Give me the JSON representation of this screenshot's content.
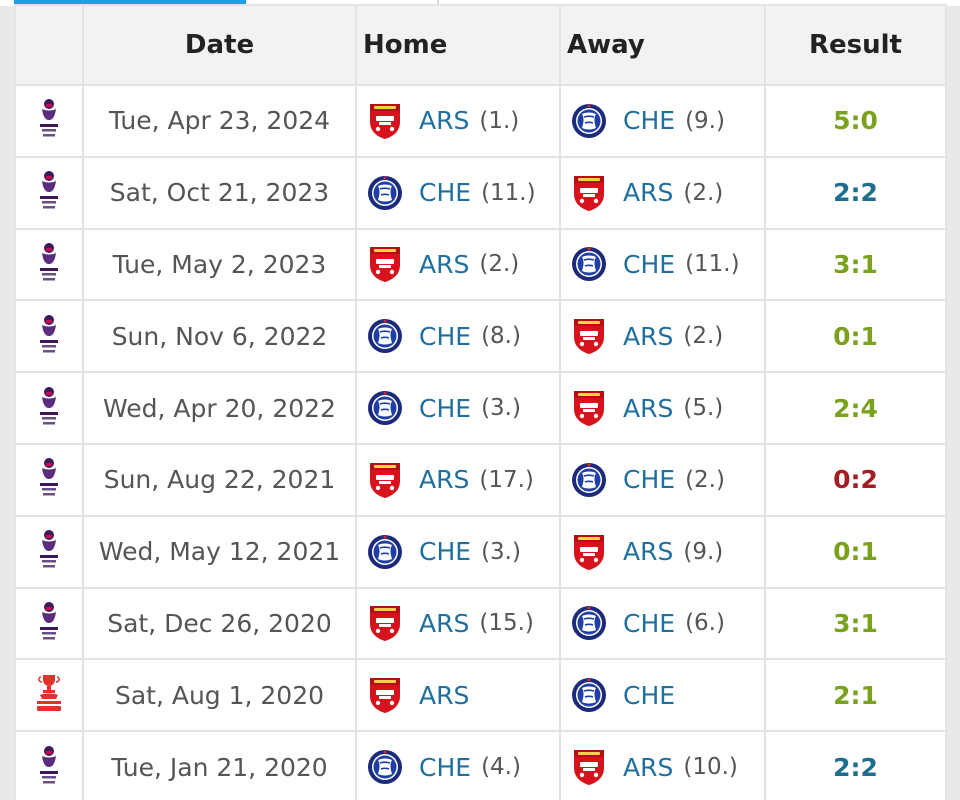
{
  "columns": {
    "date": "Date",
    "home": "Home",
    "away": "Away",
    "result": "Result"
  },
  "colors": {
    "win": "#7aa21e",
    "draw": "#1e6e8e",
    "loss": "#a41c24",
    "team_link": "#1f6fa0",
    "tab_accent": "#1aa3df"
  },
  "matches": [
    {
      "competition": "premier-league-icon",
      "date": "Tue, Apr 23, 2024",
      "home": {
        "abbr": "ARS",
        "rank": "(1.)",
        "crest": "arsenal-crest-icon"
      },
      "away": {
        "abbr": "CHE",
        "rank": "(9.)",
        "crest": "chelsea-crest-icon"
      },
      "result": "5:0",
      "outcome": "win"
    },
    {
      "competition": "premier-league-icon",
      "date": "Sat, Oct 21, 2023",
      "home": {
        "abbr": "CHE",
        "rank": "(11.)",
        "crest": "chelsea-crest-icon"
      },
      "away": {
        "abbr": "ARS",
        "rank": "(2.)",
        "crest": "arsenal-crest-icon"
      },
      "result": "2:2",
      "outcome": "draw"
    },
    {
      "competition": "premier-league-icon",
      "date": "Tue, May 2, 2023",
      "home": {
        "abbr": "ARS",
        "rank": "(2.)",
        "crest": "arsenal-crest-icon"
      },
      "away": {
        "abbr": "CHE",
        "rank": "(11.)",
        "crest": "chelsea-crest-icon"
      },
      "result": "3:1",
      "outcome": "win"
    },
    {
      "competition": "premier-league-icon",
      "date": "Sun, Nov 6, 2022",
      "home": {
        "abbr": "CHE",
        "rank": "(8.)",
        "crest": "chelsea-crest-icon"
      },
      "away": {
        "abbr": "ARS",
        "rank": "(2.)",
        "crest": "arsenal-crest-icon"
      },
      "result": "0:1",
      "outcome": "win"
    },
    {
      "competition": "premier-league-icon",
      "date": "Wed, Apr 20, 2022",
      "home": {
        "abbr": "CHE",
        "rank": "(3.)",
        "crest": "chelsea-crest-icon"
      },
      "away": {
        "abbr": "ARS",
        "rank": "(5.)",
        "crest": "arsenal-crest-icon"
      },
      "result": "2:4",
      "outcome": "win"
    },
    {
      "competition": "premier-league-icon",
      "date": "Sun, Aug 22, 2021",
      "home": {
        "abbr": "ARS",
        "rank": "(17.)",
        "crest": "arsenal-crest-icon"
      },
      "away": {
        "abbr": "CHE",
        "rank": "(2.)",
        "crest": "chelsea-crest-icon"
      },
      "result": "0:2",
      "outcome": "loss"
    },
    {
      "competition": "premier-league-icon",
      "date": "Wed, May 12, 2021",
      "home": {
        "abbr": "CHE",
        "rank": "(3.)",
        "crest": "chelsea-crest-icon"
      },
      "away": {
        "abbr": "ARS",
        "rank": "(9.)",
        "crest": "arsenal-crest-icon"
      },
      "result": "0:1",
      "outcome": "win"
    },
    {
      "competition": "premier-league-icon",
      "date": "Sat, Dec 26, 2020",
      "home": {
        "abbr": "ARS",
        "rank": "(15.)",
        "crest": "arsenal-crest-icon"
      },
      "away": {
        "abbr": "CHE",
        "rank": "(6.)",
        "crest": "chelsea-crest-icon"
      },
      "result": "3:1",
      "outcome": "win"
    },
    {
      "competition": "fa-cup-icon",
      "date": "Sat, Aug 1, 2020",
      "home": {
        "abbr": "ARS",
        "rank": "",
        "crest": "arsenal-crest-icon"
      },
      "away": {
        "abbr": "CHE",
        "rank": "",
        "crest": "chelsea-crest-icon"
      },
      "result": "2:1",
      "outcome": "win"
    },
    {
      "competition": "premier-league-icon",
      "date": "Tue, Jan 21, 2020",
      "home": {
        "abbr": "CHE",
        "rank": "(4.)",
        "crest": "chelsea-crest-icon"
      },
      "away": {
        "abbr": "ARS",
        "rank": "(10.)",
        "crest": "arsenal-crest-icon"
      },
      "result": "2:2",
      "outcome": "draw"
    }
  ]
}
